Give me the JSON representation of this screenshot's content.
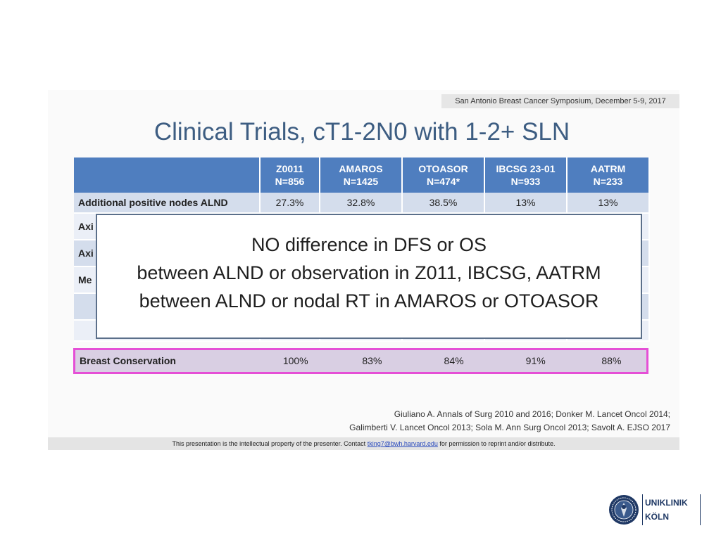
{
  "symposium": "San Antonio Breast Cancer Symposium, December 5-9, 2017",
  "title": "Clinical Trials, cT1-2N0 with 1-2+ SLN",
  "table": {
    "headers": [
      {
        "line1": "",
        "line2": ""
      },
      {
        "line1": "Z0011",
        "line2": "N=856"
      },
      {
        "line1": "AMAROS",
        "line2": "N=1425"
      },
      {
        "line1": "OTOASOR",
        "line2": "N=474*"
      },
      {
        "line1": "IBCSG 23-01",
        "line2": "N=933"
      },
      {
        "line1": "AATRM",
        "line2": "N=233"
      }
    ],
    "rows": [
      {
        "label": "Additional positive nodes ALND",
        "values": [
          "27.3%",
          "32.8%",
          "38.5%",
          "13%",
          "13%"
        ]
      },
      {
        "label": "Axi",
        "values": [
          "",
          "",
          "",
          "",
          ""
        ]
      },
      {
        "label": "Axi",
        "values": [
          "",
          "",
          "",
          "",
          ""
        ]
      },
      {
        "label": "Me",
        "values": [
          "",
          "",
          "",
          "",
          ""
        ]
      },
      {
        "label": "",
        "values": [
          "",
          "",
          "",
          "",
          ""
        ]
      },
      {
        "label": "",
        "values": [
          "",
          "",
          "",
          "",
          ""
        ]
      },
      {
        "label": "",
        "values": [
          "",
          "",
          "",
          "",
          ""
        ]
      }
    ],
    "highlight_row": {
      "label": "Breast Conservation",
      "values": [
        "100%",
        "83%",
        "84%",
        "91%",
        "88%"
      ]
    }
  },
  "overlay": {
    "line1": "NO difference in DFS or OS",
    "line2": "between ALND or observation in Z011, IBCSG, AATRM",
    "line3": "between ALND or nodal RT in AMAROS or OTOASOR"
  },
  "references": {
    "line1": "Giuliano A. Annals of Surg 2010 and 2016; Donker M. Lancet Oncol 2014;",
    "line2": "Galimberti V. Lancet Oncol 2013; Sola M. Ann Surg Oncol 2013; Savolt A. EJSO 2017"
  },
  "footer": {
    "before": "This presentation is the intellectual property of the presenter.  Contact ",
    "link": "tking7@bwh.harvard.edu",
    "after": " for permission to reprint and/or distribute."
  },
  "logo": {
    "line1": "UNIKLINIK",
    "line2": "KÖLN",
    "seal_icon": "university-seal-icon"
  },
  "colors": {
    "title": "#3d5d82",
    "header": "#4f7ebf",
    "highlight_border": "#e54fd6"
  }
}
